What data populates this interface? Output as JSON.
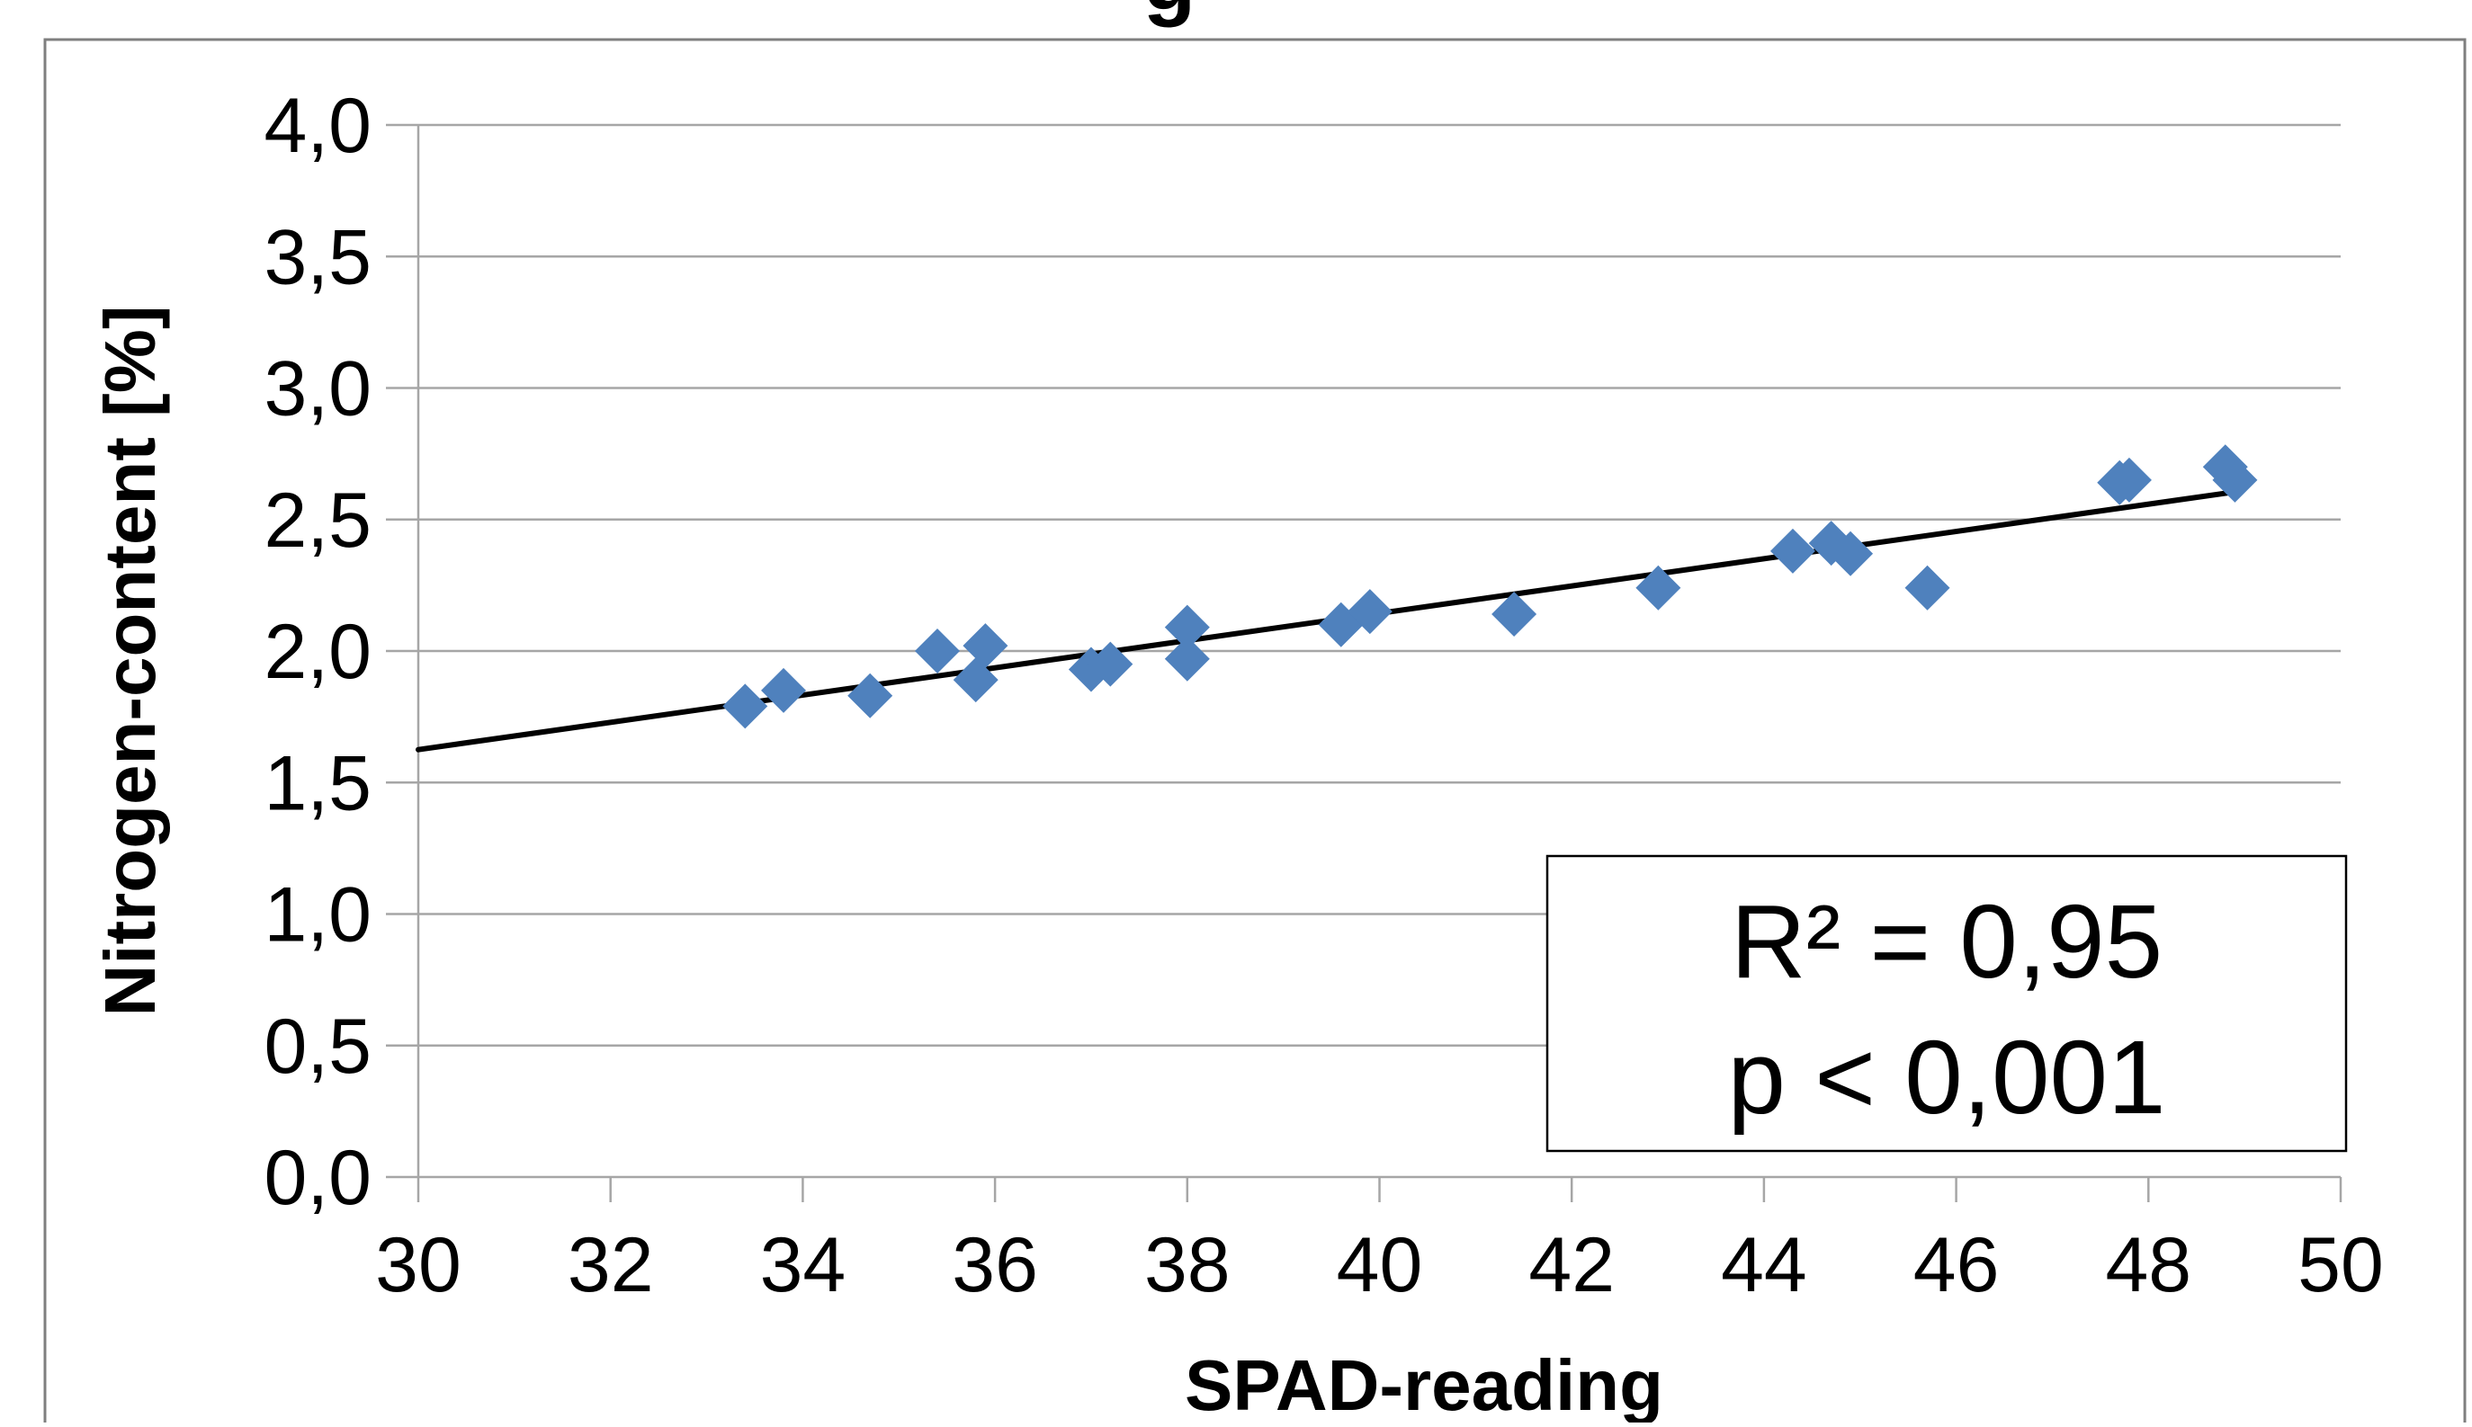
{
  "chart_data": {
    "type": "scatter",
    "title_fragment": "g",
    "xlabel": "SPAD-reading",
    "ylabel": "Nitrogen-content [%]",
    "xlim": [
      30,
      50
    ],
    "ylim": [
      0.0,
      4.0
    ],
    "x_ticks": [
      30,
      32,
      34,
      36,
      38,
      40,
      42,
      44,
      46,
      48,
      50
    ],
    "x_tick_labels": [
      "30",
      "32",
      "34",
      "36",
      "38",
      "40",
      "42",
      "44",
      "46",
      "48",
      "50"
    ],
    "y_ticks": [
      0.0,
      0.5,
      1.0,
      1.5,
      2.0,
      2.5,
      3.0,
      3.5,
      4.0
    ],
    "y_tick_labels": [
      "0,0",
      "0,5",
      "1,0",
      "1,5",
      "2,0",
      "2,5",
      "3,0",
      "3,5",
      "4,0"
    ],
    "grid": "horizontal",
    "legend": "none",
    "marker_color": "#4F81BD",
    "line_color": "#000000",
    "points": [
      {
        "x": 33.4,
        "y": 1.79
      },
      {
        "x": 33.8,
        "y": 1.85
      },
      {
        "x": 34.7,
        "y": 1.83
      },
      {
        "x": 35.4,
        "y": 2.0
      },
      {
        "x": 35.8,
        "y": 1.89
      },
      {
        "x": 35.9,
        "y": 2.02
      },
      {
        "x": 37.0,
        "y": 1.93
      },
      {
        "x": 37.2,
        "y": 1.95
      },
      {
        "x": 38.0,
        "y": 2.09
      },
      {
        "x": 38.0,
        "y": 1.97
      },
      {
        "x": 39.6,
        "y": 2.1
      },
      {
        "x": 39.9,
        "y": 2.15
      },
      {
        "x": 41.4,
        "y": 2.14
      },
      {
        "x": 42.9,
        "y": 2.24
      },
      {
        "x": 44.3,
        "y": 2.38
      },
      {
        "x": 44.7,
        "y": 2.41
      },
      {
        "x": 44.9,
        "y": 2.37
      },
      {
        "x": 45.7,
        "y": 2.24
      },
      {
        "x": 47.7,
        "y": 2.64
      },
      {
        "x": 47.8,
        "y": 2.65
      },
      {
        "x": 48.8,
        "y": 2.7
      },
      {
        "x": 48.9,
        "y": 2.65
      }
    ],
    "trendline": {
      "x": [
        30,
        48.9
      ],
      "y": [
        1.625,
        2.605
      ]
    },
    "annotation": {
      "r_squared": "R² = 0,95",
      "p_value": "p < 0,001"
    }
  }
}
